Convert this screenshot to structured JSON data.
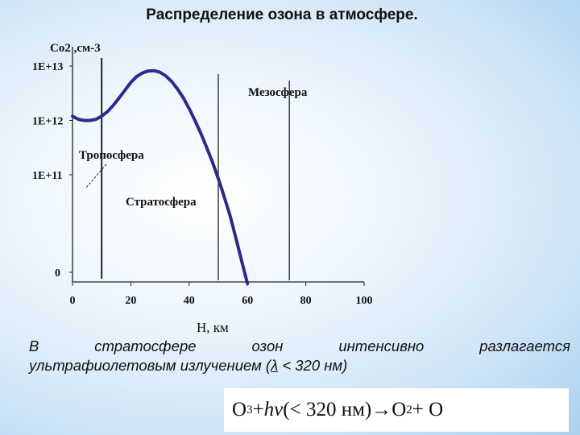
{
  "title": "Распределение озона в атмосфере.",
  "chart_data": {
    "type": "line",
    "ylabel": "Co2 ,см-3",
    "xlabel": "H, км",
    "x_ticks": [
      "0",
      "20",
      "40",
      "60",
      "80",
      "100"
    ],
    "y_ticks": [
      "0",
      "1E+11",
      "1E+12",
      "1E+13"
    ],
    "xlim": [
      0,
      100
    ],
    "y_scale": "log",
    "series_color": "#2d2a8c",
    "series": [
      {
        "x": [
          0,
          2,
          4,
          6,
          8,
          10,
          12,
          14,
          16,
          18,
          20,
          22,
          24,
          26,
          28,
          30,
          32,
          34,
          36,
          38,
          40,
          42,
          44,
          46,
          48,
          50,
          52,
          54,
          56,
          58,
          60
        ],
        "y": [
          1200000000000.0,
          1050000000000.0,
          1000000000000.0,
          1000000000000.0,
          1050000000000.0,
          1200000000000.0,
          1450000000000.0,
          1900000000000.0,
          2600000000000.0,
          3600000000000.0,
          5000000000000.0,
          6400000000000.0,
          7500000000000.0,
          8100000000000.0,
          8200000000000.0,
          7700000000000.0,
          6600000000000.0,
          5200000000000.0,
          3800000000000.0,
          2600000000000.0,
          1650000000000.0,
          1000000000000.0,
          580000000000.0,
          320000000000.0,
          170000000000.0,
          85000000000.0,
          40000000000.0,
          18000000000.0,
          7000000000.0,
          2600000000.0,
          1000000000.0
        ]
      }
    ],
    "boundaries": [
      10,
      50,
      60
    ],
    "regions": [
      {
        "label": "Тропосфера"
      },
      {
        "label": "Стратосфера"
      },
      {
        "label": "Мезосфера"
      }
    ]
  },
  "caption": {
    "line1": [
      "В",
      "стратосфере",
      "озон",
      "интенсивно",
      "разлагается"
    ],
    "line2_pre": "ультрафиолетовым излучением (",
    "lambda": "λ",
    "line2_post": " < 320 нм)"
  },
  "formula": {
    "o3": "O",
    "o3_sub": "3",
    "plus1": " + ",
    "hv": "hν",
    "cond": " (< 320 нм) ",
    "arrow": "→",
    "o2": " O",
    "o2_sub": "2",
    "plus2": " + O"
  }
}
